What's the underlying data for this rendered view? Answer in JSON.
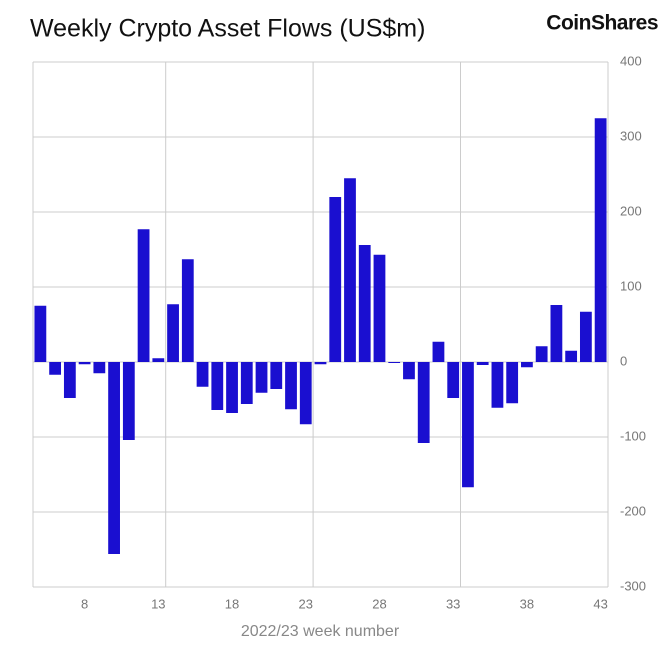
{
  "chart_data": {
    "type": "bar",
    "title": "Weekly Crypto Asset Flows (US$m)",
    "brand": "CoinShares",
    "x_label": "2022/23 week number",
    "x": [
      5,
      6,
      7,
      8,
      9,
      10,
      11,
      12,
      13,
      14,
      15,
      16,
      17,
      18,
      19,
      20,
      21,
      22,
      23,
      24,
      25,
      26,
      27,
      28,
      29,
      30,
      31,
      32,
      33,
      34,
      35,
      36,
      37,
      38,
      39,
      40,
      41,
      42,
      43
    ],
    "values": [
      75,
      -17,
      -48,
      -3,
      -15,
      -256,
      -104,
      177,
      5,
      77,
      137,
      -33,
      -64,
      -68,
      -56,
      -41,
      -36,
      -63,
      -83,
      -3,
      220,
      245,
      156,
      143,
      -1,
      -23,
      -108,
      27,
      -48,
      -167,
      -4,
      -61,
      -55,
      -7,
      21,
      76,
      15,
      67,
      325
    ],
    "color": "#1a0fd0",
    "xlim": [
      4.5,
      43.5
    ],
    "xticks": [
      8,
      13,
      18,
      23,
      28,
      33,
      38,
      43
    ],
    "ylim": [
      -300,
      400
    ],
    "yticks": [
      -300,
      -200,
      -100,
      0,
      100,
      200,
      300,
      400
    ],
    "grid": true
  }
}
